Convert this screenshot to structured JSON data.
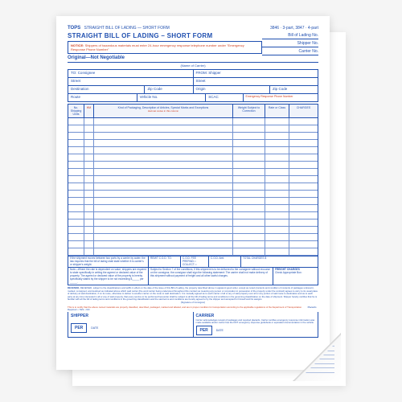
{
  "colors": {
    "form_blue": "#2050b0",
    "warning_red": "#d04020",
    "rule_blue": "#7090d0",
    "paper": "#ffffff",
    "bg": "#f5f5f5"
  },
  "header": {
    "brand": "TOPS",
    "brand_title": "STRAIGHT BILL OF LADING — SHORT FORM",
    "form_numbers": "3846 · 3-part, 3847 · 4-part",
    "main_title": "STRAIGHT BILL OF LADING – SHORT FORM",
    "refs": {
      "bol": "Bill of Lading No.",
      "shipper": "Shipper No.",
      "carrier": "Carrier No."
    },
    "notice_label": "NOTICE:",
    "notice_text": "Shippers of hazardous materials must enter 24-hour emergency response telephone number under \"Emergency Response Phone Number\"",
    "original": "Original—Not Negotiable",
    "name_of_carrier": "(Name of Carrier)"
  },
  "address": {
    "to": "TO:",
    "consignee": "Consignee",
    "from": "FROM:",
    "shipper": "Shipper",
    "street": "Street",
    "destination": "Destination",
    "zip": "Zip Code",
    "origin": "Origin",
    "route": "Route",
    "vehicle": "Vehicle No.",
    "scac": "SCAC"
  },
  "table": {
    "headers": {
      "units": "No. Shipping Units",
      "hm": "HM",
      "description": "Kind of Packaging, Description of Articles, Special Marks and Exceptions",
      "desc_note": "Hazmat codes in this column",
      "weight": "Weight Subject to Correction",
      "rate": "Rate or Class",
      "charges": "CHARGES"
    },
    "row_count": 19
  },
  "footer": {
    "remit": "REMIT C.O.D. TO:",
    "cod_fee": "C.O.D. FEE",
    "cod_amt": "C.O.D. Amt.",
    "prepaid": "PREPAID □",
    "collect": "COLLECT □",
    "total": "TOTAL CHARGES $",
    "freight": "FREIGHT CHARGES",
    "check_box": "Check Appropriate Box:",
    "value_note": "Note—Where the rate is dependent on value, shippers are required to state specifically in writing the agreed or declared value of the property. The agreed or declared value of the property is hereby specifically stated by the shipper to be not exceeding $_____ per _____.",
    "third_party_note": "If the shipment moves between two ports by a carrier by water, the law requires that the bill of lading shall state whether it is carrier's or shipper's weight.",
    "subject_note": "Subject to Section 7 of the conditions, if this shipment is to be delivered to the consignee without recourse on the consignor, the consignor shall sign the following statement: The carrier shall not make delivery of this shipment without payment of freight and all other lawful charges."
  },
  "terms": {
    "received": "RECEIVED, subject to the classifications and tariffs in effect on the date of the issue of this Bill of Lading, the property described above in apparent good order, except as noted (contents and condition of contents of packages unknown), marked, consigned, and destined as indicated above which said carrier (the word carrier being understood throughout this contract as meaning any person or corporation in possession of the property under the contract) agrees to carry to its usual place of delivery at said destination, if on its route, otherwise to deliver to another carrier on the route to said destination. It is mutually agreed as to each carrier of all or any of said property over all or any portion of said route to destination and as to each party at any time interested in all or any of said property, that every service to be performed hereunder shall be subject to all the bill of lading terms and conditions in the governing classification on the date of shipment. Shipper hereby certifies that he is familiar with all the bill of lading terms and conditions in the governing classification and the said terms and conditions are hereby agreed to by the shipper and accepted for himself and his assigns.",
    "hazmat": "This is to certify that the above named materials are properly classified, described, packaged, marked and labeled, and are in proper condition for transportation according to the applicable regulations of the Department of Transportation.",
    "emergency": "Emergency Response Phone Number",
    "placards": "Placards Required □ YES □ NO",
    "signature_consignor": "(Signature of Consignor)"
  },
  "signatures": {
    "shipper": "SHIPPER",
    "carrier": "CARRIER",
    "per": "PER",
    "date": "DATE",
    "carrier_ack": "Carrier acknowledges receipt of packages and required placards. Carrier certifies emergency response information was made available and/or carrier has the DOT emergency response guidebook or equivalent documentation in the vehicle."
  }
}
